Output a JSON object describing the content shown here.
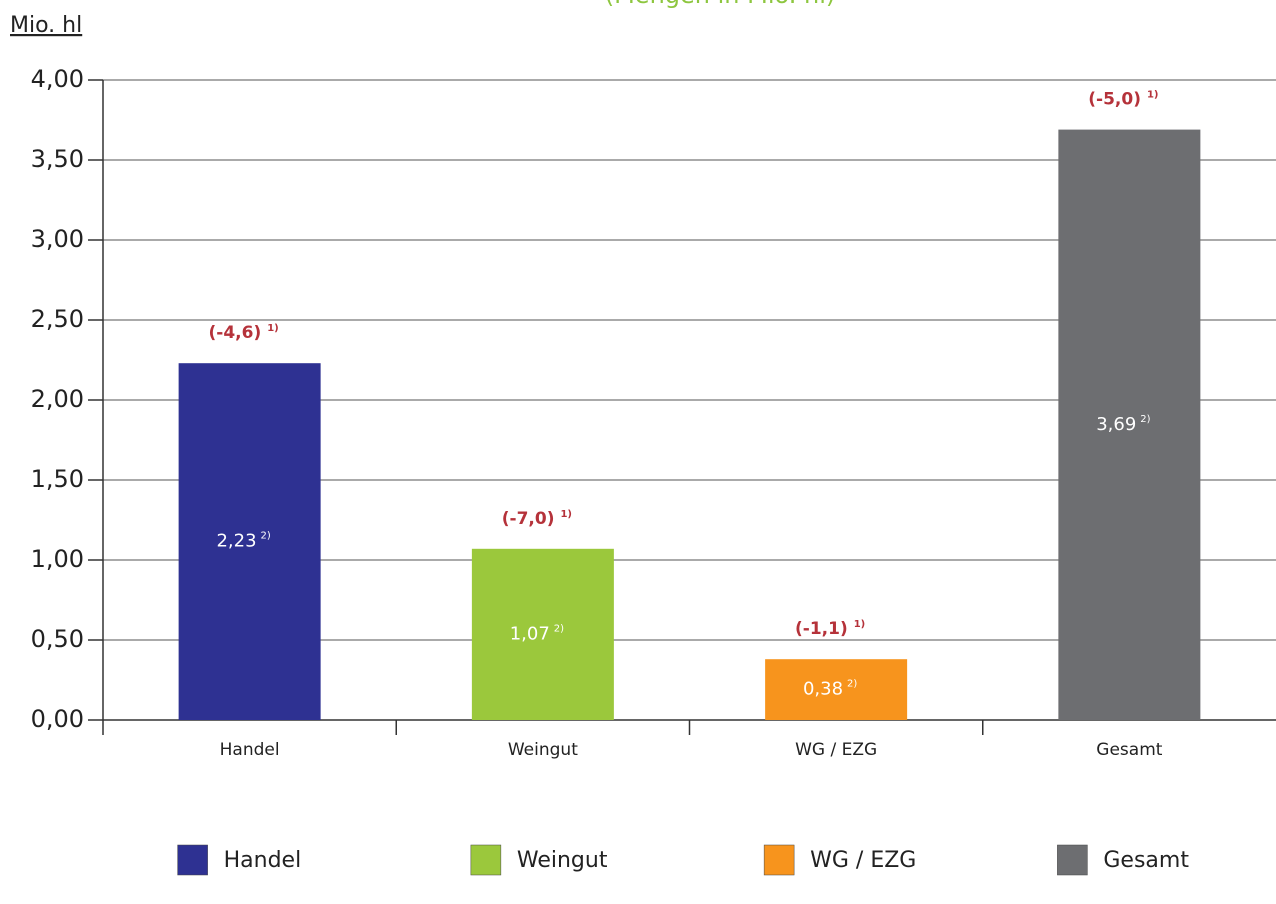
{
  "chart_data": {
    "type": "bar",
    "subtitle": "(Mengen in Mio. hl)",
    "y_label": "Mio. hl",
    "categories": [
      "Handel",
      "Weingut",
      "WG / EZG",
      "Gesamt"
    ],
    "values": [
      2.23,
      1.07,
      0.38,
      3.69
    ],
    "value_labels": [
      "2,23",
      "1,07",
      "0,38",
      "3,69"
    ],
    "value_note": "2)",
    "annotations": [
      "(-4,6)",
      "(-7,0)",
      "(-1,1)",
      "(-5,0)"
    ],
    "annotation_note": "1)",
    "colors": [
      "#2e3192",
      "#9bc83c",
      "#f7941d",
      "#6d6e71"
    ],
    "ylim": [
      0,
      4
    ],
    "yticks": [
      {
        "value": 0,
        "label": "0,00"
      },
      {
        "value": 0.5,
        "label": "0,50"
      },
      {
        "value": 1,
        "label": "1,00"
      },
      {
        "value": 1.5,
        "label": "1,50"
      },
      {
        "value": 2,
        "label": "2,00"
      },
      {
        "value": 2.5,
        "label": "2,50"
      },
      {
        "value": 3,
        "label": "3,00"
      },
      {
        "value": 3.5,
        "label": "3,50"
      },
      {
        "value": 4,
        "label": "4,00"
      }
    ],
    "grid": true,
    "legend": "bottom"
  }
}
